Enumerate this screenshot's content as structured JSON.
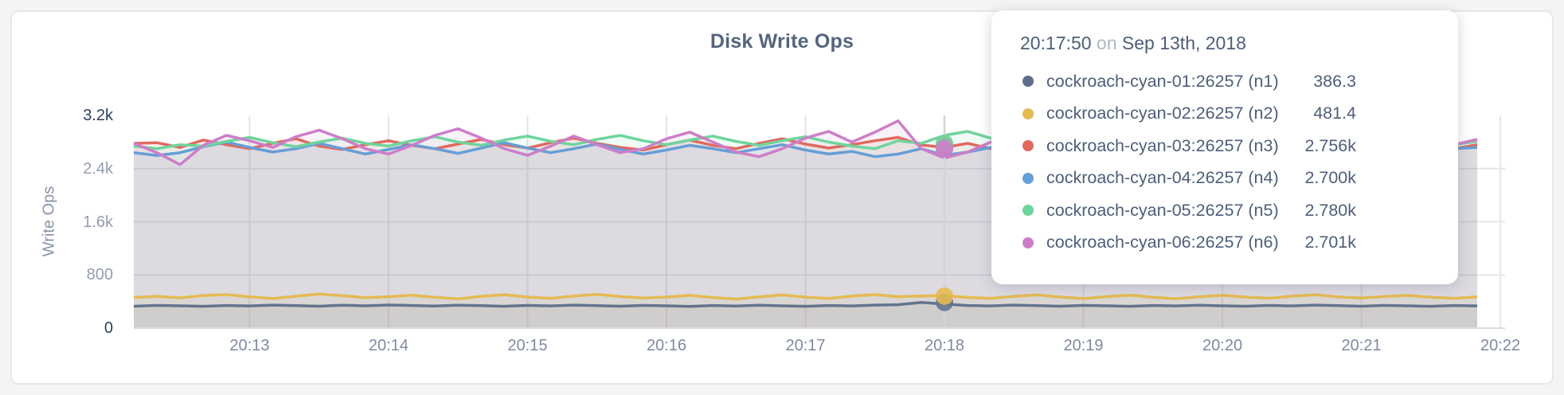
{
  "chart_data": {
    "type": "line",
    "title": "Disk Write Ops",
    "ylabel": "Write Ops",
    "xlabel": "",
    "grid": true,
    "ylim": [
      0,
      3200
    ],
    "y_ticks": [
      {
        "label": "3.2k",
        "value": 3200,
        "emphasis": true
      },
      {
        "label": "2.4k",
        "value": 2400,
        "emphasis": false
      },
      {
        "label": "1.6k",
        "value": 1600,
        "emphasis": false
      },
      {
        "label": "800",
        "value": 800,
        "emphasis": false
      },
      {
        "label": "0",
        "value": 0,
        "emphasis": true
      }
    ],
    "x_tick_labels": [
      "20:13",
      "20:14",
      "20:15",
      "20:16",
      "20:17",
      "20:18",
      "20:19",
      "20:20",
      "20:21",
      "20:22"
    ],
    "x_start_time": "20:12:10",
    "x_end_time": "20:21:50",
    "x_step_seconds": 10,
    "series": [
      {
        "name": "cockroach-cyan-01:26257 (n1)",
        "short": "n1",
        "color": "#64748e",
        "values": [
          330,
          342,
          335,
          328,
          340,
          334,
          346,
          338,
          330,
          344,
          336,
          348,
          340,
          332,
          344,
          338,
          328,
          342,
          334,
          346,
          338,
          330,
          342,
          336,
          326,
          340,
          332,
          344,
          336,
          328,
          340,
          334,
          346,
          352,
          386.3,
          362,
          340,
          334,
          346,
          338,
          330,
          342,
          336,
          328,
          340,
          334,
          344,
          336,
          330,
          342,
          334,
          346,
          338,
          330,
          342,
          336,
          328,
          340,
          334
        ]
      },
      {
        "name": "cockroach-cyan-02:26257 (n2)",
        "short": "n2",
        "color": "#e4ba52",
        "values": [
          460,
          478,
          455,
          490,
          505,
          470,
          445,
          480,
          512,
          488,
          458,
          472,
          495,
          465,
          440,
          478,
          502,
          468,
          448,
          482,
          508,
          475,
          452,
          468,
          492,
          460,
          438,
          470,
          498,
          466,
          446,
          480,
          505,
          472,
          481.4,
          490,
          462,
          448,
          478,
          500,
          468,
          445,
          475,
          496,
          464,
          442,
          472,
          494,
          468,
          450,
          480,
          502,
          470,
          452,
          476,
          492,
          465,
          448,
          470
        ]
      },
      {
        "name": "cockroach-cyan-03:26257 (n3)",
        "short": "n3",
        "color": "#e0695e",
        "values": [
          2780,
          2790,
          2720,
          2830,
          2760,
          2700,
          2780,
          2850,
          2740,
          2690,
          2760,
          2820,
          2750,
          2700,
          2770,
          2840,
          2760,
          2710,
          2790,
          2860,
          2780,
          2720,
          2680,
          2760,
          2830,
          2750,
          2700,
          2780,
          2850,
          2770,
          2710,
          2760,
          2820,
          2870,
          2756,
          2720,
          2780,
          2700,
          2750,
          2820,
          2740,
          2690,
          2770,
          2840,
          2760,
          2700,
          2730,
          2800,
          2750,
          2690,
          2760,
          2830,
          2740,
          2700,
          2770,
          2810,
          2750,
          2700,
          2760
        ]
      },
      {
        "name": "cockroach-cyan-04:26257 (n4)",
        "short": "n4",
        "color": "#669ed6",
        "values": [
          2640,
          2600,
          2640,
          2730,
          2800,
          2720,
          2650,
          2700,
          2780,
          2700,
          2620,
          2690,
          2760,
          2700,
          2630,
          2710,
          2790,
          2710,
          2640,
          2700,
          2770,
          2690,
          2620,
          2680,
          2750,
          2700,
          2640,
          2700,
          2760,
          2680,
          2620,
          2660,
          2580,
          2620,
          2700,
          2600,
          2650,
          2720,
          2780,
          2700,
          2630,
          2690,
          2750,
          2690,
          2620,
          2680,
          2740,
          2700,
          2640,
          2700,
          2760,
          2700,
          2630,
          2690,
          2750,
          2700,
          2650,
          2700,
          2720
        ]
      },
      {
        "name": "cockroach-cyan-05:26257 (n5)",
        "short": "n5",
        "color": "#6fd49d",
        "values": [
          2740,
          2700,
          2760,
          2740,
          2810,
          2870,
          2790,
          2730,
          2800,
          2860,
          2780,
          2740,
          2820,
          2880,
          2800,
          2750,
          2830,
          2890,
          2810,
          2760,
          2840,
          2900,
          2820,
          2760,
          2830,
          2890,
          2810,
          2750,
          2820,
          2880,
          2800,
          2740,
          2700,
          2820,
          2780,
          2900,
          2960,
          2860,
          2800,
          2850,
          2790,
          2740,
          2810,
          2870,
          2800,
          2750,
          2820,
          2880,
          2810,
          2760,
          2830,
          2870,
          2800,
          2750,
          2820,
          2860,
          2800,
          2760,
          2810
        ]
      },
      {
        "name": "cockroach-cyan-06:26257 (n6)",
        "short": "n6",
        "color": "#cd7ec9",
        "values": [
          2780,
          2640,
          2460,
          2750,
          2900,
          2820,
          2720,
          2880,
          2980,
          2850,
          2700,
          2620,
          2750,
          2900,
          3000,
          2860,
          2700,
          2600,
          2740,
          2890,
          2760,
          2640,
          2700,
          2850,
          2950,
          2800,
          2650,
          2580,
          2700,
          2860,
          2960,
          2800,
          2950,
          3120,
          2701,
          2560,
          2650,
          2800,
          2900,
          2750,
          2620,
          2700,
          2850,
          2960,
          2820,
          2680,
          2600,
          2750,
          2880,
          2770,
          2650,
          2720,
          2860,
          2950,
          2800,
          2680,
          2620,
          2760,
          2840
        ]
      }
    ]
  },
  "tooltip": {
    "time": "20:17:50",
    "on_word": "on",
    "date": "Sep 13th, 2018",
    "rows": [
      {
        "label": "cockroach-cyan-01:26257 (n1)",
        "value": "386.3",
        "color": "#5d6e8b"
      },
      {
        "label": "cockroach-cyan-02:26257 (n2)",
        "value": "481.4",
        "color": "#e4ba52"
      },
      {
        "label": "cockroach-cyan-03:26257 (n3)",
        "value": "2.756k",
        "color": "#e0695e"
      },
      {
        "label": "cockroach-cyan-04:26257 (n4)",
        "value": "2.700k",
        "color": "#669ed6"
      },
      {
        "label": "cockroach-cyan-05:26257 (n5)",
        "value": "2.780k",
        "color": "#6fd49d"
      },
      {
        "label": "cockroach-cyan-06:26257 (n6)",
        "value": "2.701k",
        "color": "#cd7ec9"
      }
    ]
  },
  "hover": {
    "time_label": "20:17:50",
    "t_seconds_from_start": 350,
    "markers": [
      {
        "series": 3,
        "value": 2700
      },
      {
        "series": 2,
        "value": 2756
      },
      {
        "series": 4,
        "value": 2780
      },
      {
        "series": 5,
        "value": 2701
      },
      {
        "series": 0,
        "value": 386.3
      },
      {
        "series": 1,
        "value": 481.4
      }
    ]
  },
  "colors": {
    "page_bg": "#f4f4f5",
    "card_border": "#e7e7e9",
    "grid": "#e6e5e9",
    "hover_line": "#d4d4d9",
    "title": "#54657e",
    "axis_text": "#7e8aa2"
  }
}
